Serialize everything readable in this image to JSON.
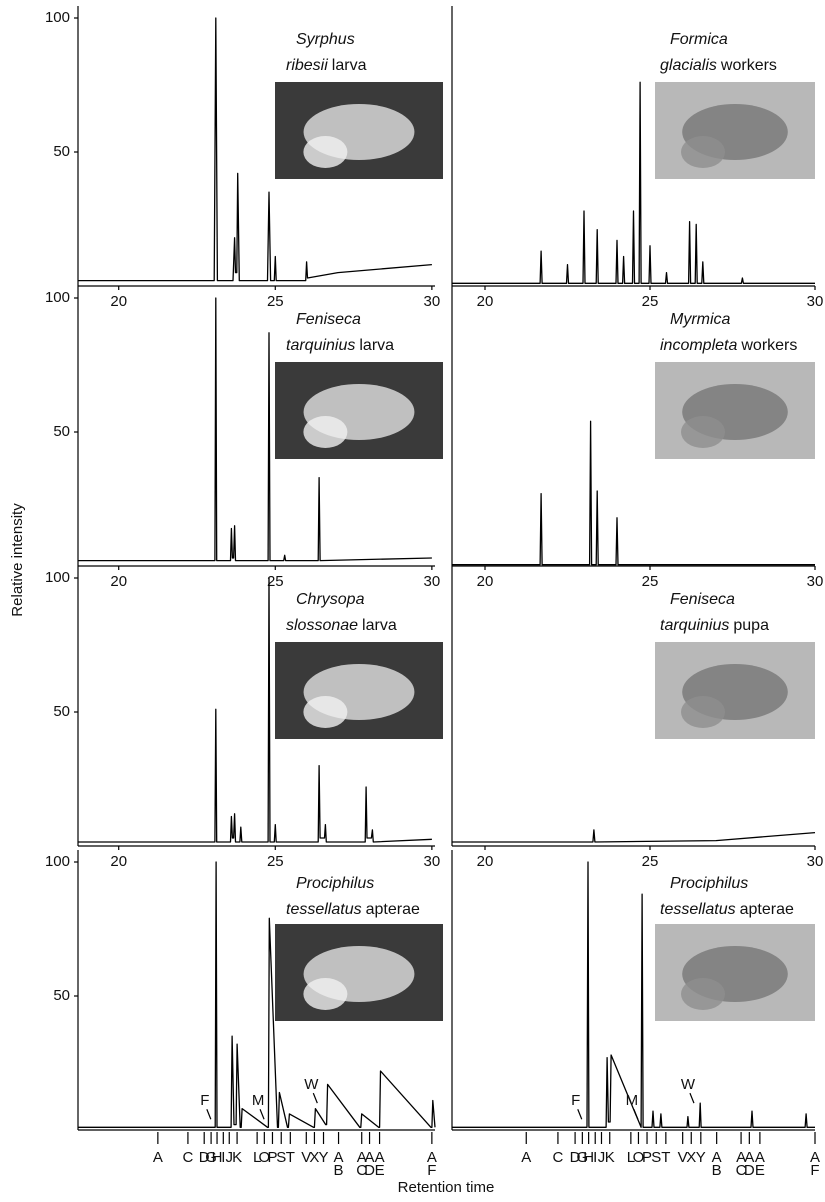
{
  "y_label": "Relative intensity",
  "x_label": "Retention time",
  "chart_data": [
    {
      "type": "line",
      "title_lines": [
        {
          "italic": "Syrphus"
        },
        {
          "italic": "ribesii",
          "plain": "larva"
        }
      ],
      "xlim": [
        18.7,
        30.1
      ],
      "ylim": [
        0,
        100
      ],
      "xticks": [
        20,
        25,
        30
      ],
      "yticks": [
        50,
        100
      ],
      "x": [
        18.7,
        23.05,
        23.1,
        23.15,
        23.65,
        23.7,
        23.73,
        23.77,
        23.8,
        23.85,
        24.75,
        24.8,
        24.85,
        24.97,
        25.0,
        25.03,
        25.97,
        26.0,
        26.03,
        27.0,
        30.0
      ],
      "values": [
        2,
        2,
        100,
        2,
        2,
        18,
        5,
        5,
        42,
        2,
        2,
        35,
        2,
        2,
        11,
        2,
        2,
        9,
        3,
        5,
        8
      ]
    },
    {
      "type": "line",
      "title_lines": [
        {
          "italic": "Formica"
        },
        {
          "italic": "glacialis",
          "plain": "workers"
        }
      ],
      "xlim": [
        19,
        30
      ],
      "ylim": [
        0,
        100
      ],
      "xticks": [
        20,
        25,
        30
      ],
      "x": [
        19,
        21.67,
        21.7,
        21.73,
        22.47,
        22.5,
        22.53,
        22.97,
        23.0,
        23.03,
        23.37,
        23.4,
        23.43,
        23.97,
        24.0,
        24.03,
        24.17,
        24.2,
        24.23,
        24.47,
        24.5,
        24.53,
        24.67,
        24.7,
        24.73,
        24.97,
        25.0,
        25.03,
        25.47,
        25.5,
        25.53,
        26.17,
        26.2,
        26.23,
        26.37,
        26.4,
        26.43,
        26.57,
        26.6,
        26.63,
        27.77,
        27.8,
        27.83,
        30
      ],
      "values": [
        1,
        1,
        13,
        1,
        1,
        8,
        1,
        1,
        28,
        1,
        1,
        21,
        1,
        1,
        17,
        1,
        1,
        11,
        1,
        1,
        28,
        1,
        1,
        76,
        1,
        1,
        15,
        1,
        1,
        5,
        1,
        1,
        24,
        1,
        1,
        23,
        1,
        1,
        9,
        1,
        1,
        3,
        1,
        1
      ]
    },
    {
      "type": "line",
      "title_lines": [
        {
          "italic": "Feniseca"
        },
        {
          "italic": "tarquinius",
          "plain": "larva"
        }
      ],
      "xlim": [
        18.7,
        30.1
      ],
      "ylim": [
        0,
        100
      ],
      "xticks": [
        20,
        25,
        30
      ],
      "yticks": [
        50,
        100
      ],
      "x": [
        18.7,
        23.07,
        23.1,
        23.13,
        23.57,
        23.6,
        23.63,
        23.67,
        23.7,
        23.73,
        24.77,
        24.8,
        24.83,
        25.27,
        25.3,
        25.33,
        26.37,
        26.4,
        26.43,
        30
      ],
      "values": [
        2,
        2,
        100,
        2,
        2,
        14,
        3,
        3,
        15,
        2,
        2,
        87,
        2,
        2,
        4,
        2,
        2,
        33,
        2,
        3
      ]
    },
    {
      "type": "line",
      "title_lines": [
        {
          "italic": "Myrmica"
        },
        {
          "italic": "incompleta",
          "plain": "workers"
        }
      ],
      "xlim": [
        19,
        30
      ],
      "ylim": [
        0,
        100
      ],
      "xticks": [
        20,
        25,
        30
      ],
      "x": [
        19,
        21.67,
        21.7,
        21.73,
        23.17,
        23.2,
        23.23,
        23.37,
        23.4,
        23.43,
        23.97,
        24.0,
        24.03,
        30
      ],
      "values": [
        0.5,
        0.5,
        27,
        0.5,
        0.5,
        54,
        0.5,
        0.5,
        28,
        0.5,
        0.5,
        18,
        0.5,
        0.5
      ]
    },
    {
      "type": "line",
      "title_lines": [
        {
          "italic": "Chrysopa"
        },
        {
          "italic": "slossonae",
          "plain": "larva"
        }
      ],
      "xlim": [
        18.7,
        30.1
      ],
      "ylim": [
        0,
        100
      ],
      "xticks": [
        20,
        25,
        30
      ],
      "yticks": [
        50,
        100
      ],
      "x": [
        18.7,
        23.07,
        23.1,
        23.13,
        23.57,
        23.6,
        23.63,
        23.67,
        23.7,
        23.73,
        23.87,
        23.9,
        23.93,
        24.77,
        24.8,
        24.83,
        24.97,
        25.0,
        25.03,
        26.37,
        26.4,
        26.43,
        26.57,
        26.6,
        26.63,
        27.87,
        27.9,
        27.93,
        28.07,
        28.1,
        28.13,
        30
      ],
      "values": [
        1.5,
        1.5,
        51,
        1.5,
        1.5,
        11,
        3,
        3,
        12,
        1.5,
        1.5,
        7,
        1.5,
        1.5,
        100,
        1.5,
        1.5,
        8,
        1.5,
        1.5,
        30,
        3,
        3,
        8,
        1.5,
        1.5,
        22,
        3,
        3,
        6,
        1.5,
        2.5
      ]
    },
    {
      "type": "line",
      "title_lines": [
        {
          "italic": "Feniseca"
        },
        {
          "italic": "tarquinius",
          "plain": "pupa"
        }
      ],
      "xlim": [
        19,
        30
      ],
      "ylim": [
        0,
        100
      ],
      "xticks": [
        20,
        25,
        30
      ],
      "x": [
        19,
        23.27,
        23.3,
        23.33,
        27,
        30
      ],
      "values": [
        1.5,
        1.5,
        6,
        1.5,
        2,
        5
      ]
    },
    {
      "type": "line",
      "title_lines": [
        {
          "italic": "Prociphilus"
        },
        {
          "italic": "tessellatus",
          "plain": "apterae"
        }
      ],
      "xlim": [
        18.7,
        30.1
      ],
      "ylim": [
        0,
        100
      ],
      "yticks": [
        50,
        100
      ],
      "x": [
        18.7,
        23.08,
        23.11,
        23.14,
        23.59,
        23.62,
        23.68,
        23.75,
        23.78,
        23.88,
        23.91,
        23.94,
        24.75,
        24.78,
        24.81,
        25.07,
        25.1,
        25.13,
        25.39,
        25.42,
        25.45,
        26.22,
        26.25,
        26.28,
        26.61,
        26.64,
        26.67,
        27.7,
        27.73,
        27.76,
        28.3,
        28.33,
        28.36,
        29.97,
        30.0,
        30.03,
        30.1
      ],
      "values": [
        1,
        1,
        100,
        1,
        1,
        35,
        2,
        2,
        32,
        1,
        1,
        8,
        1,
        1,
        79,
        1,
        1,
        14,
        1,
        1,
        6,
        1,
        1,
        8,
        2,
        2,
        17,
        1,
        1,
        6,
        1,
        1,
        22,
        1,
        1,
        11,
        1
      ],
      "annotations": [
        {
          "text": "F",
          "x": 22.75,
          "y": 7
        },
        {
          "text": "M",
          "x": 24.45,
          "y": 7
        },
        {
          "text": "W",
          "x": 26.15,
          "y": 13
        }
      ],
      "markers": [
        {
          "label": "A",
          "x": 21.25
        },
        {
          "label": "C",
          "x": 22.21
        },
        {
          "label": "D",
          "x": 22.73
        },
        {
          "label": "G",
          "x": 22.95
        },
        {
          "label": "H",
          "x": 23.14
        },
        {
          "label": "I",
          "x": 23.34
        },
        {
          "label": "J",
          "x": 23.53
        },
        {
          "label": "K",
          "x": 23.78
        },
        {
          "label": "L",
          "x": 24.42
        },
        {
          "label": "O",
          "x": 24.65
        },
        {
          "label": "P",
          "x": 24.91
        },
        {
          "label": "S",
          "x": 25.19
        },
        {
          "label": "T",
          "x": 25.48
        },
        {
          "label": "V",
          "x": 25.99
        },
        {
          "label": "X",
          "x": 26.25
        },
        {
          "label": "Y",
          "x": 26.54
        },
        {
          "label": "AB",
          "x": 27.02
        },
        {
          "label": "AC",
          "x": 27.76
        },
        {
          "label": "AD",
          "x": 28.01
        },
        {
          "label": "AE",
          "x": 28.33
        },
        {
          "label": "AF",
          "x": 30.0
        }
      ]
    },
    {
      "type": "line",
      "title_lines": [
        {
          "italic": "Prociphilus"
        },
        {
          "italic": "tessellatus",
          "plain": "apterae"
        }
      ],
      "xlim": [
        19,
        30
      ],
      "ylim": [
        0,
        100
      ],
      "x": [
        19,
        23.09,
        23.12,
        23.15,
        23.67,
        23.7,
        23.74,
        23.79,
        23.82,
        24.73,
        24.76,
        24.79,
        25.06,
        25.09,
        25.12,
        25.3,
        25.33,
        25.36,
        26.12,
        26.15,
        26.18,
        26.49,
        26.52,
        26.55,
        28.06,
        28.09,
        28.12,
        29.7,
        29.73,
        29.76,
        30
      ],
      "values": [
        1,
        1,
        100,
        1,
        1,
        27,
        3,
        3,
        28,
        1,
        88,
        1,
        1,
        7,
        1,
        1,
        6,
        1,
        1,
        5,
        1,
        1,
        10,
        1,
        1,
        7,
        1,
        1,
        6,
        1,
        1
      ],
      "annotations": [
        {
          "text": "F",
          "x": 22.75,
          "y": 7
        },
        {
          "text": "M",
          "x": 24.45,
          "y": 7
        },
        {
          "text": "W",
          "x": 26.15,
          "y": 13
        }
      ],
      "markers": [
        {
          "label": "A",
          "x": 21.25
        },
        {
          "label": "C",
          "x": 22.21
        },
        {
          "label": "D",
          "x": 22.73
        },
        {
          "label": "G",
          "x": 22.95
        },
        {
          "label": "H",
          "x": 23.14
        },
        {
          "label": "I",
          "x": 23.34
        },
        {
          "label": "J",
          "x": 23.53
        },
        {
          "label": "K",
          "x": 23.78
        },
        {
          "label": "L",
          "x": 24.42
        },
        {
          "label": "O",
          "x": 24.65
        },
        {
          "label": "P",
          "x": 24.91
        },
        {
          "label": "S",
          "x": 25.19
        },
        {
          "label": "T",
          "x": 25.48
        },
        {
          "label": "V",
          "x": 25.99
        },
        {
          "label": "X",
          "x": 26.25
        },
        {
          "label": "Y",
          "x": 26.54
        },
        {
          "label": "AB",
          "x": 27.02
        },
        {
          "label": "AC",
          "x": 27.76
        },
        {
          "label": "AD",
          "x": 28.01
        },
        {
          "label": "AE",
          "x": 28.33
        },
        {
          "label": "AF",
          "x": 30.0
        }
      ]
    }
  ]
}
